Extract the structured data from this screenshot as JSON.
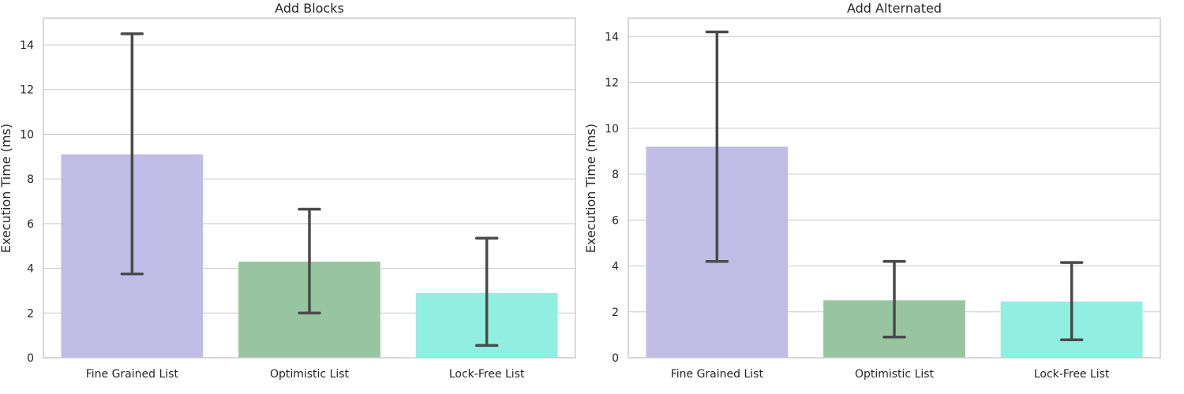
{
  "chart_data": [
    {
      "type": "bar",
      "title": "Add Blocks",
      "ylabel": "Execution Time (ms)",
      "xlabel": "",
      "categories": [
        "Fine Grained List",
        "Optimistic List",
        "Lock-Free List"
      ],
      "values": [
        9.1,
        4.3,
        2.9
      ],
      "error_low": [
        3.75,
        2.0,
        0.55
      ],
      "error_high": [
        14.5,
        6.65,
        5.35
      ],
      "colors": [
        "#c0bce6",
        "#97c59f",
        "#90efe1"
      ],
      "ylim": [
        0,
        15.2
      ],
      "yticks": [
        0,
        2,
        4,
        6,
        8,
        10,
        12,
        14
      ],
      "grid": true
    },
    {
      "type": "bar",
      "title": "Add Alternated",
      "ylabel": "Execution Time (ms)",
      "xlabel": "",
      "categories": [
        "Fine Grained List",
        "Optimistic List",
        "Lock-Free List"
      ],
      "values": [
        9.2,
        2.5,
        2.45
      ],
      "error_low": [
        4.2,
        0.9,
        0.78
      ],
      "error_high": [
        14.2,
        4.2,
        4.15
      ],
      "colors": [
        "#c0bce6",
        "#97c59f",
        "#90efe1"
      ],
      "ylim": [
        0,
        14.8
      ],
      "yticks": [
        0,
        2,
        4,
        6,
        8,
        10,
        12,
        14
      ],
      "grid": true
    }
  ],
  "style": {
    "error_bar_color": "#4a4a4a",
    "grid_color": "#cccccc",
    "frame_color": "#cccccc",
    "text_color": "#262626"
  }
}
